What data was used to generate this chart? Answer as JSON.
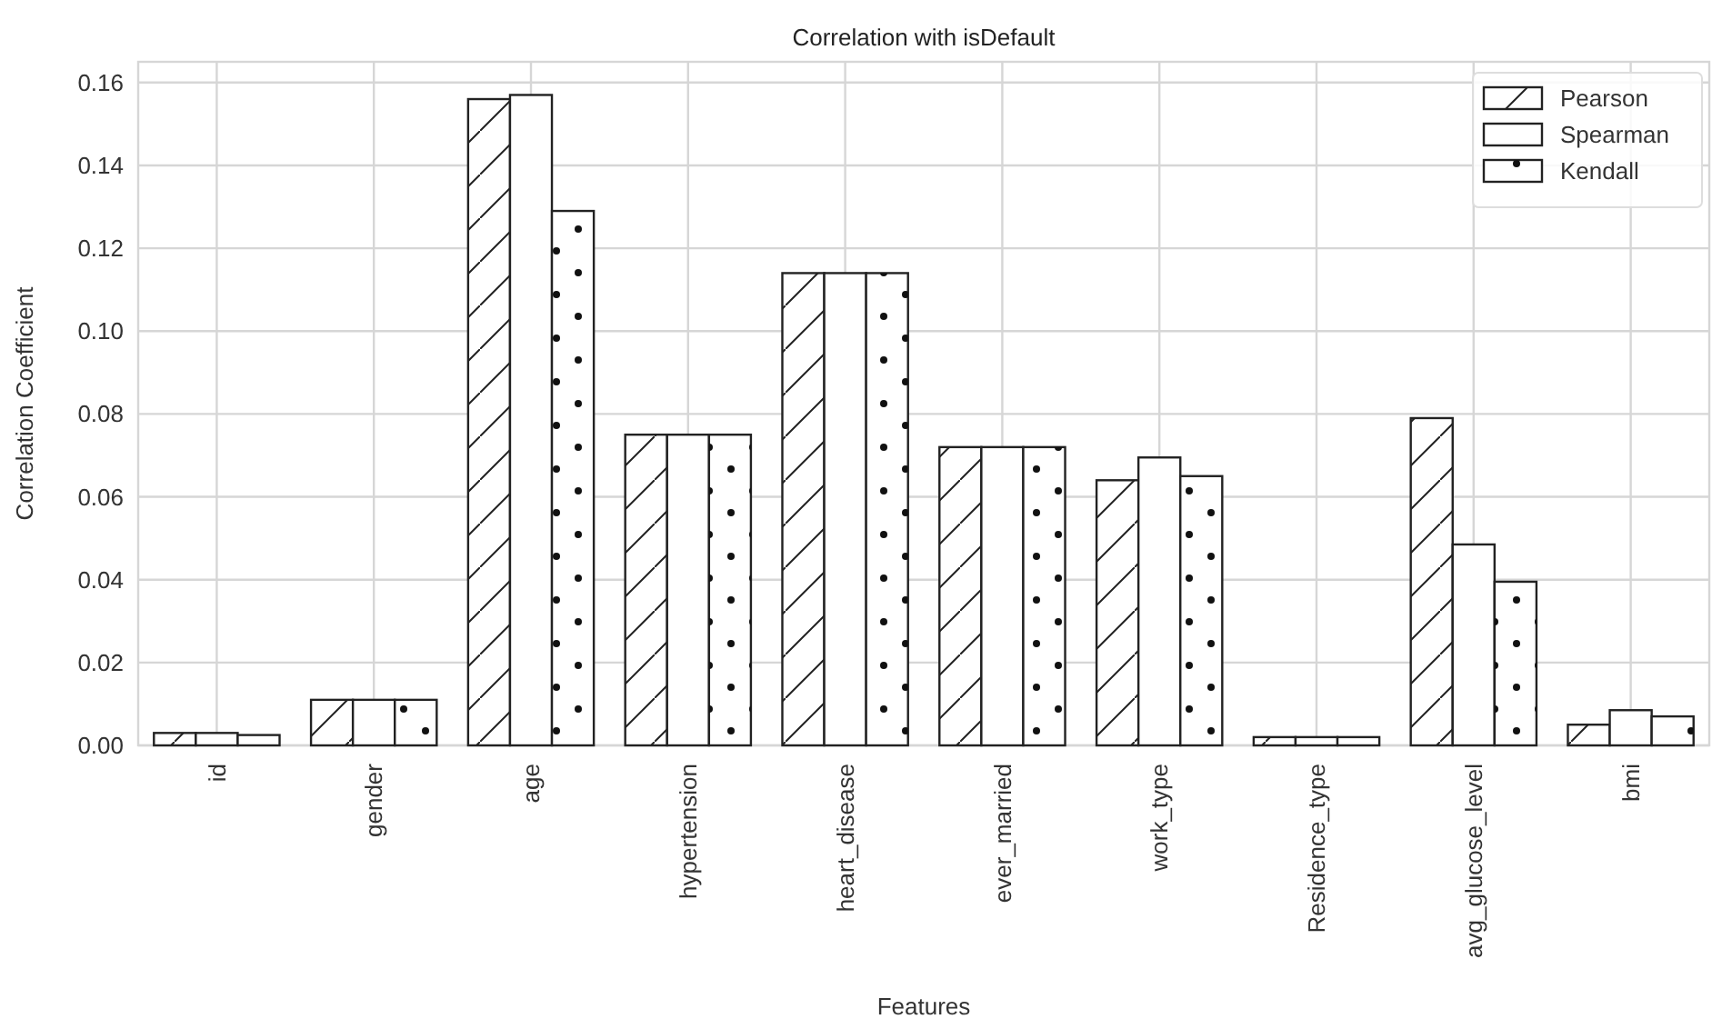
{
  "chart_data": {
    "type": "bar",
    "title": "Correlation with isDefault",
    "xlabel": "Features",
    "ylabel": "Correlation Coefficient",
    "categories": [
      "id",
      "gender",
      "age",
      "hypertension",
      "heart_disease",
      "ever_married",
      "work_type",
      "Residence_type",
      "avg_glucose_level",
      "bmi"
    ],
    "series": [
      {
        "name": "Pearson",
        "color": "#ffffff",
        "values": [
          0.003,
          0.011,
          0.156,
          0.075,
          0.114,
          0.072,
          0.064,
          0.002,
          0.079,
          0.005
        ]
      },
      {
        "name": "Spearman",
        "color": "#ffffff",
        "values": [
          0.003,
          0.011,
          0.157,
          0.075,
          0.114,
          0.072,
          0.0695,
          0.002,
          0.0485,
          0.0085
        ]
      },
      {
        "name": "Kendall",
        "color": "#ffffff",
        "values": [
          0.0025,
          0.011,
          0.129,
          0.075,
          0.114,
          0.072,
          0.065,
          0.002,
          0.0395,
          0.007
        ]
      }
    ],
    "ylim": [
      0,
      0.165
    ],
    "yticks": [
      {
        "value": 0,
        "label": "0.00"
      },
      0.02,
      0.04,
      0.06,
      0.08,
      {
        "value": 0.1,
        "label": "0.10"
      },
      0.12,
      0.14,
      0.16
    ],
    "grid": true,
    "legend": "top right"
  }
}
